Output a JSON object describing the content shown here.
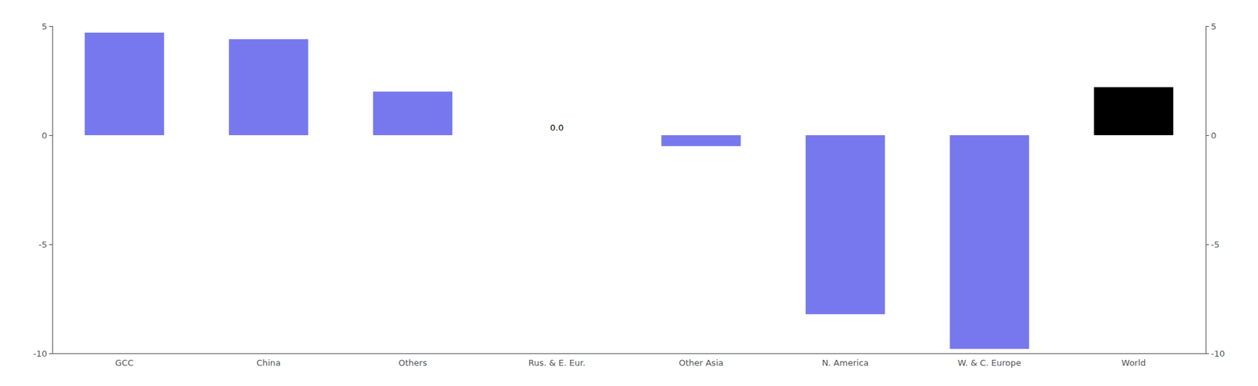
{
  "chart_data": {
    "type": "bar",
    "categories": [
      "GCC",
      "China",
      "Others",
      "Rus. & E. Eur.",
      "Other Asia",
      "N. America",
      "W. & C. Europe",
      "World"
    ],
    "values": [
      4.7,
      4.4,
      2.0,
      0.0,
      -0.5,
      -8.2,
      -9.8,
      2.2
    ],
    "colors": [
      "#7878ee",
      "#7878ee",
      "#7878ee",
      "#7878ee",
      "#7878ee",
      "#7878ee",
      "#7878ee",
      "#000000"
    ],
    "annotations": [
      {
        "text": "0.0",
        "x": "Rus. & E. Eur."
      }
    ],
    "ylim": [
      -10,
      5
    ],
    "yticks": [
      -10,
      -5,
      0,
      5
    ],
    "y2lim": [
      -10,
      5
    ],
    "y2ticks": [
      -10,
      -5,
      0,
      5
    ],
    "grid": false
  }
}
